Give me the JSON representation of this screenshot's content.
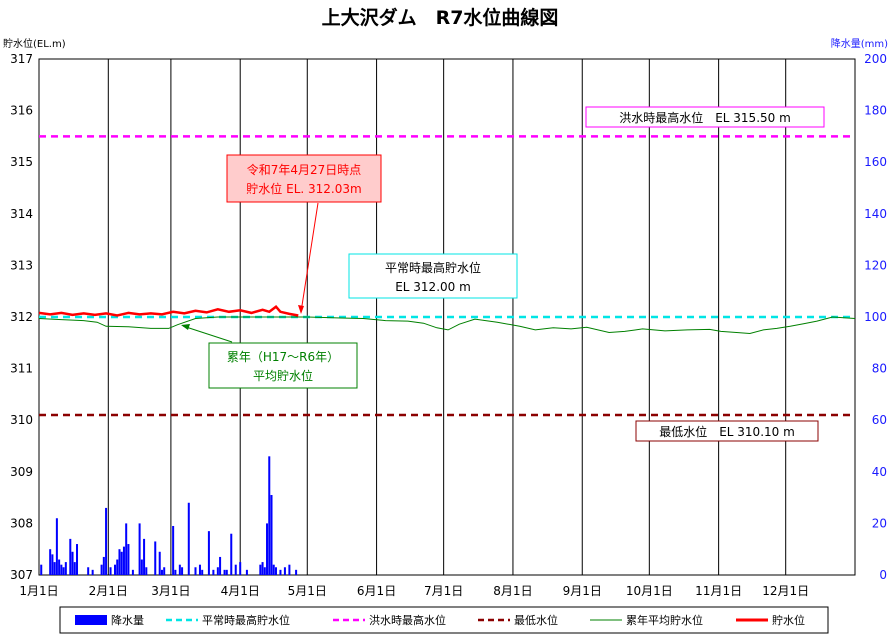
{
  "chart_data": {
    "type": "line",
    "title": "上大沢ダム　R7水位曲線図",
    "ylabel_left": "貯水位(EL.m)",
    "ylabel_right": "降水量(mm)",
    "ylim_left": [
      307,
      317
    ],
    "ylim_right": [
      0,
      200
    ],
    "y_ticks_left": [
      "307",
      "308",
      "309",
      "310",
      "311",
      "312",
      "313",
      "314",
      "315",
      "316",
      "317"
    ],
    "y_ticks_right": [
      "0",
      "20",
      "40",
      "60",
      "80",
      "100",
      "120",
      "140",
      "160",
      "180",
      "200"
    ],
    "x_ticks": [
      "1月1日",
      "2月1日",
      "3月1日",
      "4月1日",
      "5月1日",
      "6月1日",
      "7月1日",
      "8月1日",
      "9月1日",
      "10月1日",
      "11月1日",
      "12月1日"
    ],
    "x_tick_days": [
      0,
      31,
      59,
      90,
      120,
      151,
      181,
      212,
      243,
      273,
      304,
      334
    ],
    "x_range_days": [
      0,
      365
    ],
    "grid_x": true,
    "legend_position": "bottom",
    "colors": {
      "precip": "#0000ff",
      "normal_max": "#00e5e5",
      "flood_max": "#ff00ff",
      "min_level": "#8b0000",
      "avg": "#008000",
      "current": "#ff0000"
    },
    "hlines": [
      {
        "name": "平常時最高貯水位",
        "value": 312.0
      },
      {
        "name": "洪水時最高水位",
        "value": 315.5
      },
      {
        "name": "最低水位",
        "value": 310.1
      }
    ],
    "series_current": {
      "name": "貯水位",
      "points": [
        [
          0,
          312.08
        ],
        [
          5,
          312.05
        ],
        [
          10,
          312.08
        ],
        [
          15,
          312.04
        ],
        [
          20,
          312.07
        ],
        [
          25,
          312.04
        ],
        [
          30,
          312.07
        ],
        [
          35,
          312.03
        ],
        [
          40,
          312.08
        ],
        [
          45,
          312.05
        ],
        [
          50,
          312.07
        ],
        [
          55,
          312.05
        ],
        [
          60,
          312.1
        ],
        [
          65,
          312.07
        ],
        [
          70,
          312.12
        ],
        [
          75,
          312.09
        ],
        [
          80,
          312.15
        ],
        [
          85,
          312.1
        ],
        [
          90,
          312.13
        ],
        [
          95,
          312.08
        ],
        [
          100,
          312.14
        ],
        [
          103,
          312.1
        ],
        [
          106,
          312.2
        ],
        [
          108,
          312.1
        ],
        [
          112,
          312.06
        ],
        [
          116,
          312.03
        ]
      ]
    },
    "series_avg": {
      "name": "累年平均貯水位",
      "points": [
        [
          0,
          311.97
        ],
        [
          10,
          311.95
        ],
        [
          20,
          311.93
        ],
        [
          26,
          311.9
        ],
        [
          30,
          311.82
        ],
        [
          40,
          311.81
        ],
        [
          50,
          311.78
        ],
        [
          58,
          311.78
        ],
        [
          62,
          311.85
        ],
        [
          70,
          311.97
        ],
        [
          80,
          312.0
        ],
        [
          100,
          312.0
        ],
        [
          120,
          312.0
        ],
        [
          135,
          311.98
        ],
        [
          145,
          311.97
        ],
        [
          155,
          311.93
        ],
        [
          165,
          311.92
        ],
        [
          172,
          311.88
        ],
        [
          178,
          311.79
        ],
        [
          183,
          311.75
        ],
        [
          188,
          311.86
        ],
        [
          195,
          311.96
        ],
        [
          205,
          311.9
        ],
        [
          215,
          311.82
        ],
        [
          222,
          311.75
        ],
        [
          230,
          311.79
        ],
        [
          238,
          311.77
        ],
        [
          245,
          311.8
        ],
        [
          255,
          311.7
        ],
        [
          262,
          311.72
        ],
        [
          270,
          311.77
        ],
        [
          280,
          311.73
        ],
        [
          290,
          311.75
        ],
        [
          300,
          311.76
        ],
        [
          305,
          311.72
        ],
        [
          312,
          311.7
        ],
        [
          318,
          311.68
        ],
        [
          324,
          311.75
        ],
        [
          330,
          311.78
        ],
        [
          336,
          311.82
        ],
        [
          342,
          311.87
        ],
        [
          348,
          311.92
        ],
        [
          355,
          312.0
        ],
        [
          365,
          311.97
        ]
      ]
    },
    "precip": {
      "name": "降水量",
      "days": [
        1,
        5,
        6,
        7,
        8,
        9,
        10,
        11,
        12,
        14,
        15,
        16,
        17,
        22,
        24,
        28,
        29,
        30,
        32,
        34,
        35,
        36,
        37,
        38,
        39,
        40,
        42,
        45,
        46,
        47,
        48,
        52,
        54,
        55,
        56,
        60,
        61,
        63,
        64,
        67,
        70,
        72,
        73,
        76,
        78,
        80,
        81,
        83,
        84,
        86,
        88,
        90,
        93,
        99,
        100,
        101,
        102,
        103,
        104,
        105,
        106,
        108,
        110,
        112,
        115
      ],
      "values": [
        4,
        10,
        8,
        5,
        22,
        6,
        4,
        3,
        5,
        14,
        9,
        5,
        12,
        3,
        2,
        4,
        7,
        26,
        3,
        4,
        6,
        10,
        9,
        11,
        20,
        12,
        2,
        20,
        6,
        14,
        3,
        13,
        9,
        2,
        3,
        19,
        2,
        4,
        3,
        28,
        3,
        4,
        2,
        17,
        2,
        3,
        7,
        2,
        2,
        16,
        4,
        5,
        2,
        4,
        5,
        3,
        20,
        46,
        31,
        4,
        3,
        2,
        3,
        4,
        2
      ]
    },
    "annotations": {
      "flood_label": "洪水時最高水位　EL 315.50 m",
      "normal_label_1": "平常時最高貯水位",
      "normal_label_2": "EL 312.00 m",
      "min_label": "最低水位　EL 310.10 m",
      "current_label_1": "令和7年4月27日時点",
      "current_label_2": "貯水位 EL. 312.03m",
      "avg_label_1": "累年（H17～R6年）",
      "avg_label_2": "平均貯水位"
    },
    "legend": [
      "降水量",
      "平常時最高貯水位",
      "洪水時最高水位",
      "最低水位",
      "累年平均貯水位",
      "貯水位"
    ]
  }
}
